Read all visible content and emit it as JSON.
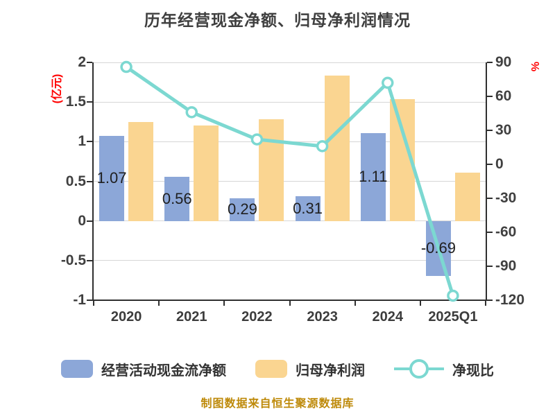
{
  "title": "历年经营现金净额、归母净利润情况",
  "caption": "制图数据来自恒生聚源数据库",
  "axes": {
    "left": {
      "unit": "(亿元)",
      "unit_color": "#ff0000",
      "ticks": [
        "2",
        "1.5",
        "1",
        "0.5",
        "0",
        "-0.5",
        "-1"
      ]
    },
    "right": {
      "unit": "%",
      "unit_color": "#ff0000",
      "ticks": [
        "90",
        "60",
        "30",
        "0",
        "-30",
        "-60",
        "-90",
        "-120"
      ]
    }
  },
  "chart_data": {
    "type": "bar",
    "subtype": "grouped-bars-with-line",
    "title": "历年经营现金净额、归母净利润情况",
    "categories": [
      "2020",
      "2021",
      "2022",
      "2023",
      "2024",
      "2025Q1"
    ],
    "series": [
      {
        "name": "经营活动现金流净额",
        "type": "bar",
        "axis": "left",
        "color": "#8ca7d8",
        "values": [
          1.07,
          0.56,
          0.29,
          0.31,
          1.11,
          -0.69
        ],
        "labels": [
          "1.07",
          "0.56",
          "0.29",
          "0.31",
          "1.11",
          "-0.69"
        ]
      },
      {
        "name": "归母净利润",
        "type": "bar",
        "axis": "left",
        "color": "#fad591",
        "values": [
          1.25,
          1.2,
          1.28,
          1.83,
          1.54,
          0.61
        ]
      },
      {
        "name": "净现比",
        "type": "line",
        "axis": "right",
        "color": "#7cd8d1",
        "marker_fill": "#ffffff",
        "values": [
          86,
          46,
          22,
          16,
          72,
          -116
        ]
      }
    ],
    "left_ylabel": "(亿元)",
    "right_ylabel": "%",
    "left_ylim": [
      -1,
      2
    ],
    "right_ylim": [
      -120,
      90
    ],
    "grid": true,
    "legend_position": "bottom"
  },
  "colors": {
    "title": "#3f3f3f",
    "tick_label": "#404040",
    "grid": "#d6d6d6",
    "axis_line": "#2f2f2f",
    "bar_label": "#1f1f1f",
    "caption": "#be8a0a"
  }
}
